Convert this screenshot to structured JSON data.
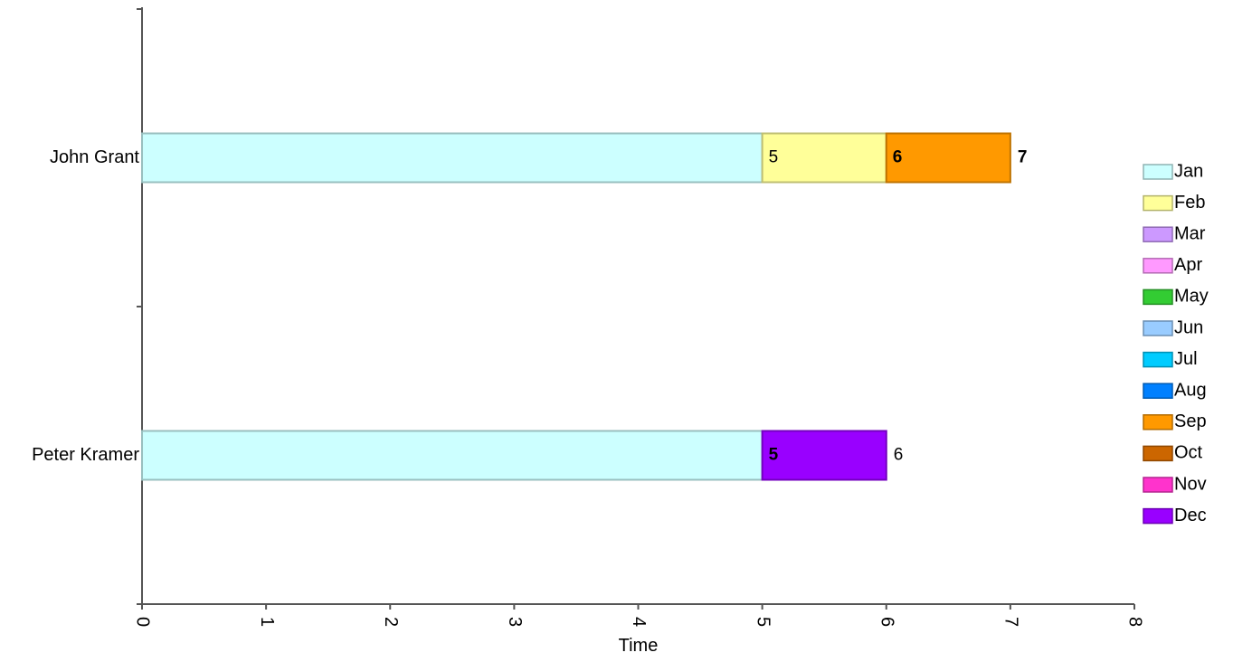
{
  "chart_data": {
    "type": "bar",
    "orientation": "horizontal",
    "stacked": true,
    "categories": [
      "John Grant",
      "Peter Kramer"
    ],
    "xlabel": "Time",
    "xlim": [
      0,
      8
    ],
    "xticks": [
      "0",
      "1",
      "2",
      "3",
      "4",
      "5",
      "6",
      "7",
      "8"
    ],
    "legend_position": "right",
    "legend": [
      {
        "name": "Jan",
        "color": "#ccffff"
      },
      {
        "name": "Feb",
        "color": "#ffff99"
      },
      {
        "name": "Mar",
        "color": "#cc99ff"
      },
      {
        "name": "Apr",
        "color": "#ff99ff"
      },
      {
        "name": "May",
        "color": "#33cc33"
      },
      {
        "name": "Jun",
        "color": "#99ccff"
      },
      {
        "name": "Jul",
        "color": "#00ccff"
      },
      {
        "name": "Aug",
        "color": "#0080ff"
      },
      {
        "name": "Sep",
        "color": "#ff9900"
      },
      {
        "name": "Oct",
        "color": "#cc6600"
      },
      {
        "name": "Nov",
        "color": "#ff33cc"
      },
      {
        "name": "Dec",
        "color": "#9900ff"
      }
    ],
    "bars": [
      {
        "category": "John Grant",
        "segments": [
          {
            "series": "Jan",
            "start": 0,
            "end": 5,
            "label": ""
          },
          {
            "series": "Feb",
            "start": 5,
            "end": 6,
            "label": "5",
            "bold": false
          },
          {
            "series": "Sep",
            "start": 6,
            "end": 7,
            "label": "6",
            "bold": true
          }
        ],
        "end_label": "7",
        "end_bold": true
      },
      {
        "category": "Peter Kramer",
        "segments": [
          {
            "series": "Jan",
            "start": 0,
            "end": 5,
            "label": ""
          },
          {
            "series": "Dec",
            "start": 5,
            "end": 6,
            "label": "5",
            "bold": true
          }
        ],
        "end_label": "6",
        "end_bold": false
      }
    ]
  }
}
